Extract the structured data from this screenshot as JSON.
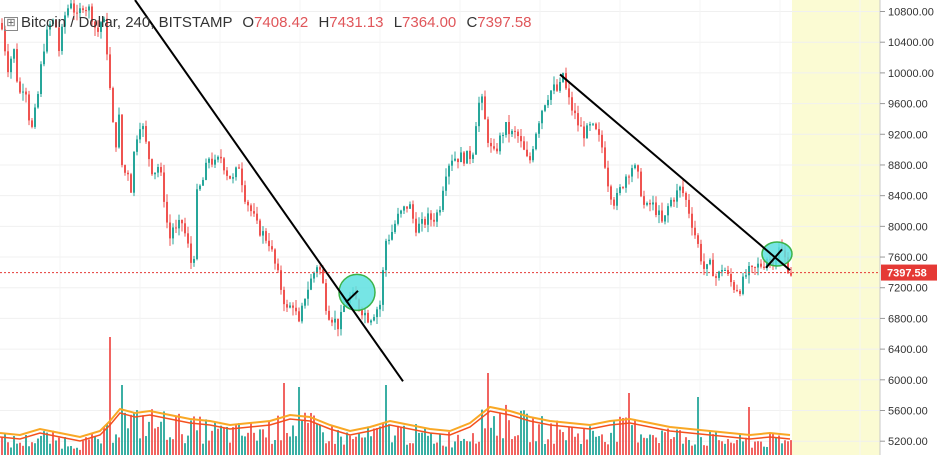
{
  "legend": {
    "symbol_label": "Bitcoin / Dollar, 240, BITSTAMP",
    "open_key": "O",
    "open": "7408.42",
    "high_key": "H",
    "high": "7431.13",
    "low_key": "L",
    "low": "7364.00",
    "close_key": "C",
    "close": "7397.58"
  },
  "colors": {
    "up": "#26a69a",
    "down": "#ef5350",
    "trendline": "#000000",
    "highlight_fill": "#5ee0e0",
    "highlight_stroke": "#3cb34a",
    "future_zone": "#fbfbd3",
    "price_line": "#e53935",
    "price_label_bg": "#e53935",
    "ma_fast": "#f4511e",
    "ma_slow": "#f9a825"
  },
  "chart_data": {
    "type": "candlestick",
    "y_ticks": [
      5200,
      5600,
      6000,
      6400,
      6800,
      7200,
      7600,
      8000,
      8400,
      8800,
      9200,
      9600,
      10000,
      10400,
      10800
    ],
    "y_tick_labels": [
      "5200.00",
      "5600.00",
      "6000.00",
      "6400.00",
      "6800.00",
      "7200.00",
      "7600.00",
      "8000.00",
      "8400.00",
      "8800.00",
      "9200.00",
      "9600.00",
      "10000.00",
      "10400.00",
      "10800.00"
    ],
    "ylim": [
      5020,
      10950
    ],
    "current_price": 7397.58,
    "current_price_label": "7397.58",
    "price_path": [
      [
        0,
        10650
      ],
      [
        8,
        10000
      ],
      [
        12,
        10400
      ],
      [
        18,
        9700
      ],
      [
        24,
        9900
      ],
      [
        30,
        9200
      ],
      [
        36,
        9600
      ],
      [
        42,
        10300
      ],
      [
        48,
        10600
      ],
      [
        54,
        10700
      ],
      [
        58,
        10300
      ],
      [
        64,
        10750
      ],
      [
        70,
        10950
      ],
      [
        76,
        10700
      ],
      [
        82,
        10900
      ],
      [
        90,
        10800
      ],
      [
        96,
        10500
      ],
      [
        102,
        10750
      ],
      [
        106,
        10300
      ],
      [
        110,
        9600
      ],
      [
        114,
        9000
      ],
      [
        118,
        9400
      ],
      [
        122,
        8600
      ],
      [
        126,
        8800
      ],
      [
        130,
        8500
      ],
      [
        134,
        9100
      ],
      [
        140,
        9400
      ],
      [
        146,
        9000
      ],
      [
        152,
        8700
      ],
      [
        158,
        8800
      ],
      [
        164,
        8300
      ],
      [
        168,
        7800
      ],
      [
        172,
        8000
      ],
      [
        176,
        7900
      ],
      [
        180,
        8100
      ],
      [
        186,
        7800
      ],
      [
        192,
        7400
      ],
      [
        196,
        8400
      ],
      [
        202,
        8600
      ],
      [
        208,
        8900
      ],
      [
        214,
        8800
      ],
      [
        220,
        8900
      ],
      [
        226,
        8700
      ],
      [
        232,
        8600
      ],
      [
        238,
        8800
      ],
      [
        244,
        8400
      ],
      [
        250,
        8200
      ],
      [
        256,
        8000
      ],
      [
        262,
        7900
      ],
      [
        268,
        7800
      ],
      [
        274,
        7500
      ],
      [
        280,
        7200
      ],
      [
        286,
        6900
      ],
      [
        292,
        7000
      ],
      [
        298,
        6700
      ],
      [
        304,
        7100
      ],
      [
        310,
        7300
      ],
      [
        316,
        7500
      ],
      [
        320,
        7400
      ],
      [
        326,
        6900
      ],
      [
        332,
        6800
      ],
      [
        338,
        6700
      ],
      [
        344,
        7000
      ],
      [
        350,
        7100
      ],
      [
        356,
        7000
      ],
      [
        362,
        6900
      ],
      [
        368,
        6800
      ],
      [
        374,
        6900
      ],
      [
        380,
        7000
      ],
      [
        384,
        7800
      ],
      [
        390,
        7900
      ],
      [
        396,
        8100
      ],
      [
        402,
        8200
      ],
      [
        408,
        8300
      ],
      [
        414,
        8000
      ],
      [
        420,
        8000
      ],
      [
        426,
        8100
      ],
      [
        432,
        8100
      ],
      [
        438,
        8200
      ],
      [
        444,
        8700
      ],
      [
        450,
        8900
      ],
      [
        456,
        8900
      ],
      [
        462,
        8900
      ],
      [
        468,
        8900
      ],
      [
        472,
        9000
      ],
      [
        476,
        9500
      ],
      [
        480,
        9700
      ],
      [
        486,
        9200
      ],
      [
        492,
        8900
      ],
      [
        498,
        9100
      ],
      [
        504,
        9300
      ],
      [
        510,
        9200
      ],
      [
        516,
        9200
      ],
      [
        522,
        9000
      ],
      [
        528,
        8800
      ],
      [
        534,
        9200
      ],
      [
        540,
        9500
      ],
      [
        546,
        9700
      ],
      [
        552,
        9800
      ],
      [
        558,
        9750
      ],
      [
        562,
        10000
      ],
      [
        566,
        9700
      ],
      [
        572,
        9500
      ],
      [
        578,
        9300
      ],
      [
        584,
        9200
      ],
      [
        590,
        9300
      ],
      [
        596,
        9200
      ],
      [
        602,
        9000
      ],
      [
        608,
        8500
      ],
      [
        614,
        8300
      ],
      [
        620,
        8500
      ],
      [
        626,
        8700
      ],
      [
        632,
        8800
      ],
      [
        638,
        8600
      ],
      [
        644,
        8200
      ],
      [
        650,
        8300
      ],
      [
        656,
        8200
      ],
      [
        662,
        8000
      ],
      [
        668,
        8300
      ],
      [
        674,
        8400
      ],
      [
        680,
        8500
      ],
      [
        686,
        8300
      ],
      [
        692,
        8000
      ],
      [
        698,
        7700
      ],
      [
        704,
        7400
      ],
      [
        710,
        7500
      ],
      [
        716,
        7300
      ],
      [
        722,
        7500
      ],
      [
        728,
        7300
      ],
      [
        734,
        7200
      ],
      [
        740,
        7200
      ],
      [
        746,
        7400
      ],
      [
        752,
        7400
      ],
      [
        758,
        7500
      ],
      [
        762,
        7500
      ],
      [
        766,
        7600
      ],
      [
        770,
        7550
      ],
      [
        774,
        7600
      ],
      [
        778,
        7700
      ],
      [
        782,
        7650
      ],
      [
        786,
        7500
      ],
      [
        790,
        7398
      ]
    ],
    "trendlines": [
      {
        "from": [
          135,
          10950
        ],
        "to": [
          403,
          5980
        ]
      },
      {
        "from": [
          560,
          9980
        ],
        "to": [
          790,
          7430
        ]
      },
      {
        "from": [
          346,
          7010
        ],
        "to": [
          358,
          7160
        ]
      },
      {
        "from": [
          766,
          7460
        ],
        "to": [
          782,
          7700
        ]
      }
    ],
    "highlight_circles": [
      {
        "cx": 357,
        "cy": 7140,
        "rx": 18,
        "ry": 18
      },
      {
        "cx": 777,
        "cy": 7640,
        "rx": 15,
        "ry": 12
      }
    ],
    "volume_profile": [
      [
        0,
        18
      ],
      [
        20,
        16
      ],
      [
        40,
        22
      ],
      [
        60,
        18
      ],
      [
        80,
        14
      ],
      [
        100,
        20
      ],
      [
        110,
        30
      ],
      [
        120,
        42
      ],
      [
        135,
        38
      ],
      [
        150,
        40
      ],
      [
        170,
        36
      ],
      [
        190,
        32
      ],
      [
        210,
        30
      ],
      [
        230,
        26
      ],
      [
        250,
        28
      ],
      [
        270,
        30
      ],
      [
        290,
        36
      ],
      [
        310,
        34
      ],
      [
        330,
        26
      ],
      [
        350,
        20
      ],
      [
        370,
        24
      ],
      [
        390,
        30
      ],
      [
        410,
        26
      ],
      [
        430,
        22
      ],
      [
        450,
        20
      ],
      [
        470,
        28
      ],
      [
        490,
        44
      ],
      [
        510,
        40
      ],
      [
        530,
        34
      ],
      [
        550,
        30
      ],
      [
        570,
        28
      ],
      [
        590,
        26
      ],
      [
        610,
        30
      ],
      [
        630,
        32
      ],
      [
        650,
        28
      ],
      [
        670,
        24
      ],
      [
        690,
        22
      ],
      [
        710,
        20
      ],
      [
        730,
        18
      ],
      [
        750,
        16
      ],
      [
        770,
        18
      ],
      [
        790,
        16
      ]
    ],
    "volume_spikes": [
      [
        110,
        118
      ],
      [
        122,
        70
      ],
      [
        283,
        72
      ],
      [
        299,
        68
      ],
      [
        384,
        70
      ],
      [
        486,
        82
      ],
      [
        627,
        62
      ],
      [
        697,
        58
      ],
      [
        748,
        48
      ]
    ],
    "future_zone_from_x": 792
  }
}
